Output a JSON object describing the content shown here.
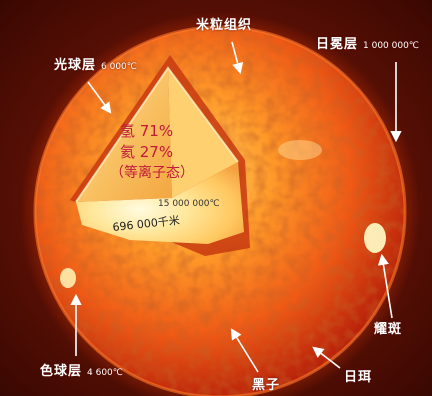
{
  "labels": {
    "granulation": "米粒组织",
    "corona": {
      "name": "日冕层",
      "temp": "1 000 000℃"
    },
    "photosphere": {
      "name": "光球层",
      "temp": "6 000℃"
    },
    "chromosphere": {
      "name": "色球层",
      "temp": "4 600℃"
    },
    "faculae": "耀斑",
    "sunspot": "黑子",
    "prominence": "日珥"
  },
  "core": {
    "composition": [
      "氢 71%",
      "氦 27%",
      "（等离子态）"
    ],
    "core_temp": "15 000 000℃",
    "radius": "696 000千米"
  },
  "colors": {
    "sun_outer": "#c9280a",
    "sun_mid": "#ee5a18",
    "sun_inner": "#ffb040",
    "core_center": "#fff6c8",
    "composition_text": "#c21a3a",
    "label_text": "#ffffff"
  }
}
